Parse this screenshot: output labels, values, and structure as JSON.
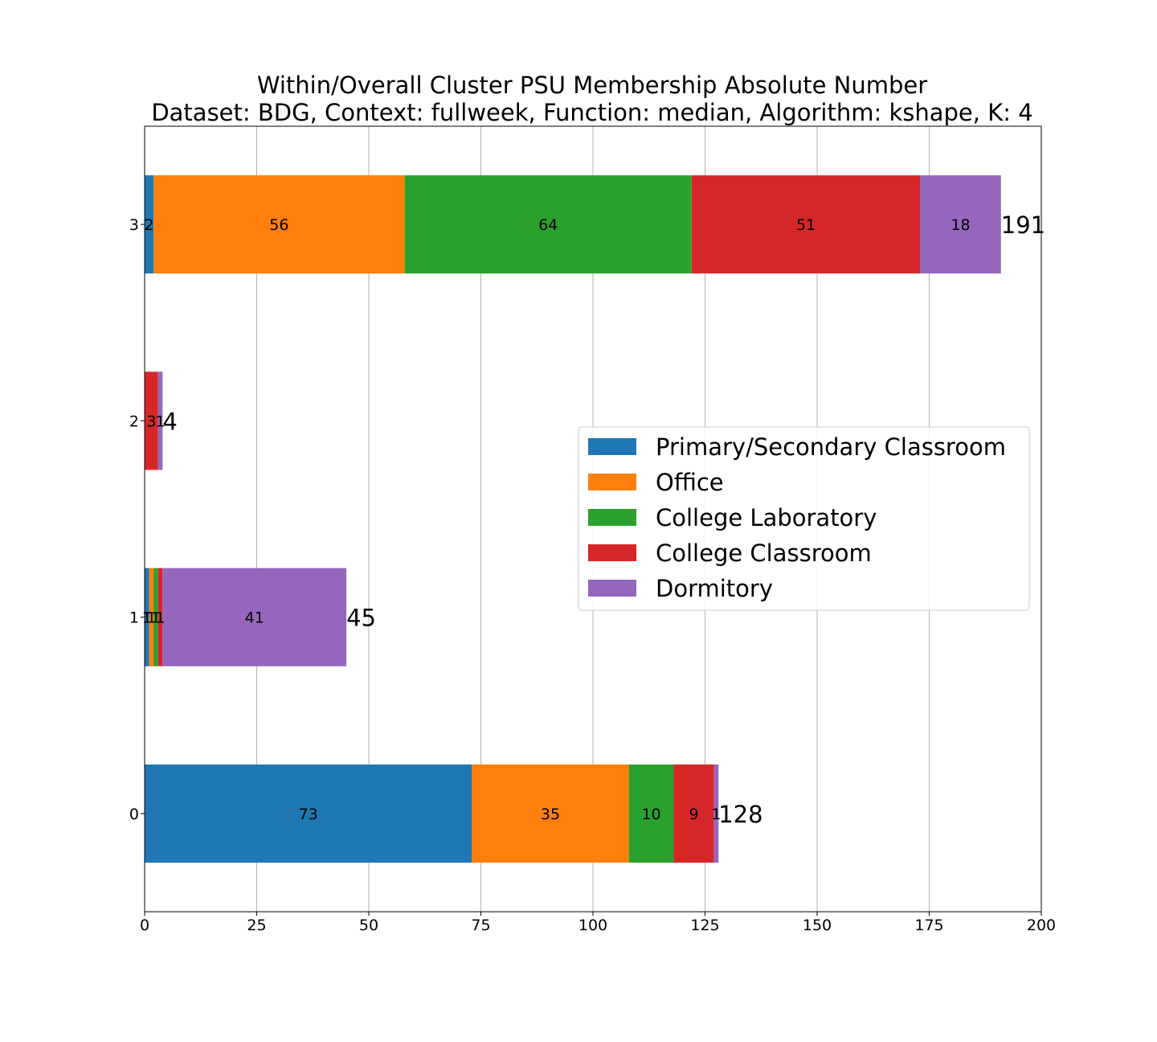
{
  "chart_data": {
    "type": "bar",
    "orientation": "horizontal",
    "stacked": true,
    "title": "Within/Overall Cluster PSU Membership Absolute Number",
    "subtitle": "Dataset: BDG, Context: fullweek, Function: median, Algorithm: kshape, K: 4",
    "xlabel": "",
    "ylabel": "",
    "xlim": [
      0,
      200
    ],
    "x_ticks": [
      "0",
      "25",
      "50",
      "75",
      "100",
      "125",
      "150",
      "175",
      "200"
    ],
    "grid": "vertical",
    "legend_position": "center-right",
    "categories": [
      "0",
      "1",
      "2",
      "3"
    ],
    "series": [
      {
        "name": "Primary/Secondary Classroom",
        "color": "#1f77b4",
        "values": [
          73,
          1,
          0,
          2
        ]
      },
      {
        "name": "Office",
        "color": "#ff7f0e",
        "values": [
          35,
          1,
          0,
          56
        ]
      },
      {
        "name": "College Laboratory",
        "color": "#2ca02c",
        "values": [
          10,
          1,
          0,
          64
        ]
      },
      {
        "name": "College Classroom",
        "color": "#d62728",
        "values": [
          9,
          1,
          3,
          51
        ]
      },
      {
        "name": "Dormitory",
        "color": "#9467bd",
        "values": [
          1,
          41,
          1,
          18
        ]
      }
    ],
    "segment_labels": [
      [
        "73",
        "35",
        "10",
        "9",
        "1"
      ],
      [
        "1",
        "1",
        "1",
        "1",
        "41"
      ],
      [
        "",
        "",
        "",
        "3",
        "1"
      ],
      [
        "2",
        "56",
        "64",
        "51",
        "18"
      ]
    ],
    "totals": [
      "128",
      "45",
      "4",
      "191"
    ]
  }
}
